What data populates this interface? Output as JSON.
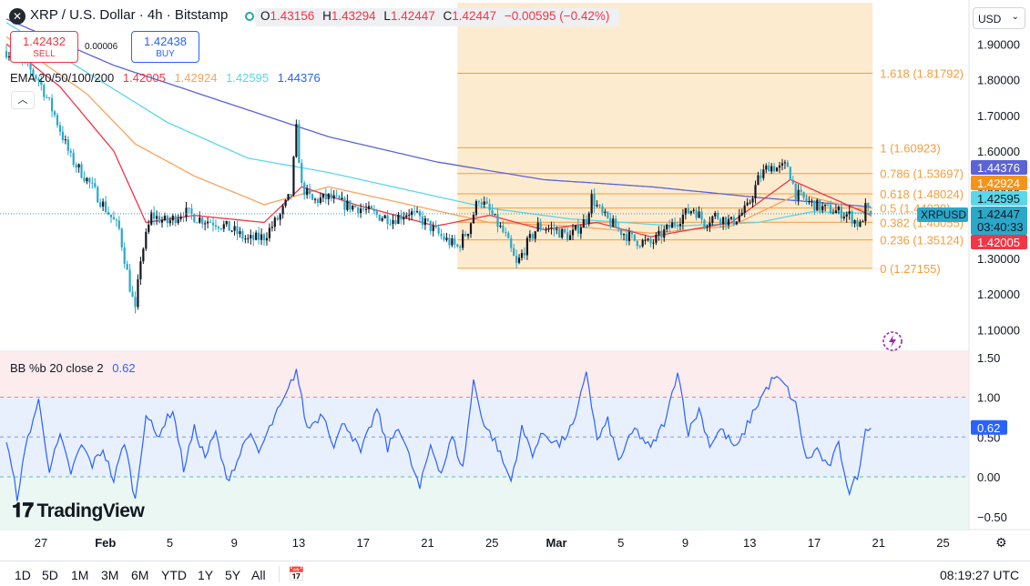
{
  "header": {
    "symbol_title": "XRP / U.S. Dollar · 4h · Bitstamp",
    "ohlc": {
      "o_label": "O",
      "o": "1.43156",
      "h_label": "H",
      "h": "1.43294",
      "l_label": "L",
      "l": "1.42447",
      "c_label": "C",
      "c": "1.42447",
      "change": "−0.00595 (−0.42%)"
    },
    "sell_price": "1.42432",
    "sell_label": "SELL",
    "buy_price": "1.42438",
    "buy_label": "BUY",
    "spread": "0.00006",
    "ema_label": "EMA 20/50/100/200",
    "ema_values": [
      "1.42005",
      "1.42924",
      "1.42595",
      "1.44376"
    ],
    "currency": "USD"
  },
  "colors": {
    "ema20": "#f23645",
    "ema50": "#f7a35c",
    "ema100": "#5ad7e8",
    "ema200": "#5b63d6",
    "up": "#131722",
    "down": "#2aa8c9",
    "fib": "#f59d3d",
    "fib_fill": "#fde7c7",
    "bb": "#2962ff"
  },
  "bb_legend": {
    "label": "BB %b 20 close 2",
    "value": "0.62"
  },
  "branding": {
    "logo_text": "TradingView"
  },
  "bottom": {
    "ranges": [
      "1D",
      "5D",
      "1M",
      "3M",
      "6M",
      "YTD",
      "1Y",
      "5Y",
      "All"
    ],
    "clock": "08:19:27 UTC"
  },
  "icons": {
    "calendar": "calendar-range-icon",
    "settings": "gear-icon",
    "flash": "flash-icon",
    "collapse": "chevron-up-icon"
  },
  "chart_data": [
    {
      "type": "candlestick",
      "title": "XRP / U.S. Dollar · 4h · Bitstamp",
      "x_tick_labels": [
        "27",
        "Feb",
        "5",
        "9",
        "13",
        "17",
        "21",
        "25",
        "Mar",
        "5",
        "9",
        "13",
        "17",
        "21",
        "25"
      ],
      "x_tick_index": [
        0,
        24,
        48,
        72,
        96,
        120,
        144,
        168,
        192,
        216,
        240,
        264,
        288,
        312,
        336
      ],
      "y_ticks": [
        "1.90000",
        "1.80000",
        "1.70000",
        "1.60000",
        "1.50000",
        "1.40000",
        "1.30000",
        "1.20000",
        "1.10000"
      ],
      "ylim": [
        1.05,
        1.95
      ],
      "last_price": {
        "symbol": "XRPUSD",
        "price": "1.42447",
        "countdown": "03:40:33"
      },
      "ema_tags": [
        {
          "value": "1.44376",
          "series": "EMA 200"
        },
        {
          "value": "1.42924",
          "series": "EMA 50"
        },
        {
          "value": "1.42595",
          "series": "EMA 100"
        },
        {
          "value": "1.42005",
          "series": "EMA 20"
        }
      ],
      "fibonacci": {
        "start_index": 168,
        "end_index": 322,
        "low": 1.27155,
        "high": 1.60923,
        "levels": [
          {
            "ratio": "0",
            "value": 1.27155,
            "label": "0 (1.27155)"
          },
          {
            "ratio": "0.236",
            "value": 1.35124,
            "label": "0.236 (1.35124)"
          },
          {
            "ratio": "0.382",
            "value": 1.40055,
            "label": "0.382 (1.40055)"
          },
          {
            "ratio": "0.5",
            "value": 1.44039,
            "label": "0.5 (1.44039)"
          },
          {
            "ratio": "0.618",
            "value": 1.48024,
            "label": "0.618 (1.48024)"
          },
          {
            "ratio": "0.786",
            "value": 1.53697,
            "label": "0.786 (1.53697)"
          },
          {
            "ratio": "1",
            "value": 1.60923,
            "label": "1 (1.60923)"
          },
          {
            "ratio": "1.618",
            "value": 1.81792,
            "label": "1.618 (1.81792)"
          }
        ]
      },
      "close_anchors": [
        [
          0,
          1.88
        ],
        [
          6,
          1.85
        ],
        [
          12,
          1.8
        ],
        [
          18,
          1.7
        ],
        [
          24,
          1.58
        ],
        [
          30,
          1.52
        ],
        [
          36,
          1.45
        ],
        [
          42,
          1.38
        ],
        [
          46,
          1.22
        ],
        [
          48,
          1.15
        ],
        [
          50,
          1.3
        ],
        [
          54,
          1.42
        ],
        [
          60,
          1.4
        ],
        [
          66,
          1.43
        ],
        [
          72,
          1.41
        ],
        [
          78,
          1.4
        ],
        [
          84,
          1.38
        ],
        [
          90,
          1.35
        ],
        [
          96,
          1.36
        ],
        [
          102,
          1.42
        ],
        [
          106,
          1.48
        ],
        [
          108,
          1.66
        ],
        [
          110,
          1.5
        ],
        [
          114,
          1.46
        ],
        [
          120,
          1.47
        ],
        [
          126,
          1.45
        ],
        [
          132,
          1.44
        ],
        [
          138,
          1.42
        ],
        [
          144,
          1.41
        ],
        [
          150,
          1.43
        ],
        [
          156,
          1.4
        ],
        [
          162,
          1.36
        ],
        [
          168,
          1.33
        ],
        [
          172,
          1.38
        ],
        [
          176,
          1.47
        ],
        [
          180,
          1.43
        ],
        [
          186,
          1.36
        ],
        [
          190,
          1.28
        ],
        [
          194,
          1.34
        ],
        [
          198,
          1.39
        ],
        [
          204,
          1.38
        ],
        [
          210,
          1.36
        ],
        [
          216,
          1.41
        ],
        [
          218,
          1.47
        ],
        [
          222,
          1.42
        ],
        [
          228,
          1.38
        ],
        [
          234,
          1.35
        ],
        [
          240,
          1.34
        ],
        [
          246,
          1.38
        ],
        [
          252,
          1.42
        ],
        [
          256,
          1.44
        ],
        [
          260,
          1.4
        ],
        [
          264,
          1.42
        ],
        [
          270,
          1.4
        ],
        [
          276,
          1.44
        ],
        [
          280,
          1.52
        ],
        [
          284,
          1.56
        ],
        [
          288,
          1.55
        ],
        [
          291,
          1.56
        ],
        [
          294,
          1.48
        ],
        [
          298,
          1.46
        ],
        [
          304,
          1.44
        ],
        [
          310,
          1.43
        ],
        [
          314,
          1.42
        ],
        [
          318,
          1.39
        ],
        [
          320,
          1.44
        ],
        [
          322,
          1.42447
        ]
      ],
      "ema200_anchors": [
        [
          0,
          1.97
        ],
        [
          40,
          1.84
        ],
        [
          80,
          1.74
        ],
        [
          120,
          1.64
        ],
        [
          160,
          1.57
        ],
        [
          200,
          1.52
        ],
        [
          240,
          1.5
        ],
        [
          280,
          1.47
        ],
        [
          322,
          1.44376
        ]
      ],
      "ema100_anchors": [
        [
          0,
          1.96
        ],
        [
          30,
          1.82
        ],
        [
          60,
          1.68
        ],
        [
          90,
          1.58
        ],
        [
          120,
          1.54
        ],
        [
          150,
          1.49
        ],
        [
          180,
          1.44
        ],
        [
          210,
          1.41
        ],
        [
          250,
          1.39
        ],
        [
          280,
          1.4
        ],
        [
          300,
          1.43
        ],
        [
          322,
          1.42595
        ]
      ],
      "ema50_anchors": [
        [
          0,
          1.92
        ],
        [
          30,
          1.76
        ],
        [
          48,
          1.62
        ],
        [
          70,
          1.53
        ],
        [
          96,
          1.45
        ],
        [
          120,
          1.5
        ],
        [
          150,
          1.45
        ],
        [
          180,
          1.4
        ],
        [
          210,
          1.39
        ],
        [
          240,
          1.37
        ],
        [
          270,
          1.39
        ],
        [
          295,
          1.48
        ],
        [
          322,
          1.42924
        ]
      ],
      "ema20_anchors": [
        [
          0,
          1.9
        ],
        [
          20,
          1.78
        ],
        [
          40,
          1.6
        ],
        [
          52,
          1.4
        ],
        [
          70,
          1.42
        ],
        [
          96,
          1.4
        ],
        [
          110,
          1.5
        ],
        [
          130,
          1.45
        ],
        [
          160,
          1.39
        ],
        [
          180,
          1.42
        ],
        [
          200,
          1.38
        ],
        [
          220,
          1.4
        ],
        [
          240,
          1.36
        ],
        [
          270,
          1.4
        ],
        [
          292,
          1.52
        ],
        [
          322,
          1.42005
        ]
      ]
    },
    {
      "type": "line",
      "title": "BB %b 20 close 2",
      "y_ticks": [
        "1.50",
        "1.00",
        "0.50",
        "0.00",
        "−0.50"
      ],
      "ylim": [
        -0.65,
        1.55
      ],
      "bands": {
        "upper": 1.0,
        "middle": 0.5,
        "lower": 0.0
      },
      "last_value": "0.62",
      "anchors": [
        [
          0,
          0.45
        ],
        [
          4,
          -0.25
        ],
        [
          8,
          0.5
        ],
        [
          12,
          0.95
        ],
        [
          16,
          0.1
        ],
        [
          20,
          0.5
        ],
        [
          24,
          0.05
        ],
        [
          28,
          0.4
        ],
        [
          32,
          0.15
        ],
        [
          36,
          0.35
        ],
        [
          40,
          -0.05
        ],
        [
          44,
          0.45
        ],
        [
          48,
          -0.3
        ],
        [
          52,
          0.8
        ],
        [
          56,
          0.5
        ],
        [
          62,
          0.85
        ],
        [
          66,
          0.1
        ],
        [
          70,
          0.6
        ],
        [
          74,
          0.25
        ],
        [
          78,
          0.55
        ],
        [
          82,
          -0.05
        ],
        [
          86,
          0.2
        ],
        [
          90,
          0.55
        ],
        [
          94,
          0.3
        ],
        [
          100,
          0.75
        ],
        [
          104,
          1.0
        ],
        [
          108,
          1.35
        ],
        [
          112,
          0.6
        ],
        [
          118,
          0.8
        ],
        [
          122,
          0.4
        ],
        [
          126,
          0.7
        ],
        [
          132,
          0.3
        ],
        [
          138,
          0.85
        ],
        [
          142,
          0.35
        ],
        [
          146,
          0.65
        ],
        [
          150,
          0.25
        ],
        [
          154,
          -0.15
        ],
        [
          158,
          0.4
        ],
        [
          162,
          0.05
        ],
        [
          166,
          0.5
        ],
        [
          170,
          0.1
        ],
        [
          174,
          1.2
        ],
        [
          178,
          0.65
        ],
        [
          182,
          0.45
        ],
        [
          186,
          0.1
        ],
        [
          188,
          -0.05
        ],
        [
          192,
          0.6
        ],
        [
          196,
          0.3
        ],
        [
          200,
          0.55
        ],
        [
          206,
          0.4
        ],
        [
          212,
          0.7
        ],
        [
          216,
          1.35
        ],
        [
          220,
          0.45
        ],
        [
          224,
          0.7
        ],
        [
          228,
          0.2
        ],
        [
          234,
          0.6
        ],
        [
          240,
          0.35
        ],
        [
          246,
          0.75
        ],
        [
          250,
          1.35
        ],
        [
          254,
          0.55
        ],
        [
          258,
          0.85
        ],
        [
          262,
          0.4
        ],
        [
          266,
          0.6
        ],
        [
          272,
          0.35
        ],
        [
          278,
          0.8
        ],
        [
          282,
          1.05
        ],
        [
          286,
          1.25
        ],
        [
          290,
          1.15
        ],
        [
          294,
          0.9
        ],
        [
          298,
          0.2
        ],
        [
          302,
          0.35
        ],
        [
          306,
          0.1
        ],
        [
          310,
          0.4
        ],
        [
          314,
          -0.2
        ],
        [
          318,
          0.1
        ],
        [
          320,
          0.65
        ],
        [
          322,
          0.62
        ]
      ]
    }
  ]
}
